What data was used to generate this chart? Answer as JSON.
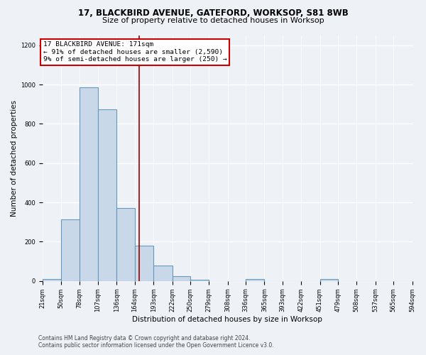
{
  "title1": "17, BLACKBIRD AVENUE, GATEFORD, WORKSOP, S81 8WB",
  "title2": "Size of property relative to detached houses in Worksop",
  "xlabel": "Distribution of detached houses by size in Worksop",
  "ylabel": "Number of detached properties",
  "bin_edges": [
    21,
    50,
    78,
    107,
    136,
    164,
    193,
    222,
    250,
    279,
    308,
    336,
    365,
    393,
    422,
    451,
    479,
    508,
    537,
    565,
    594
  ],
  "bar_heights": [
    10,
    315,
    985,
    875,
    370,
    180,
    80,
    25,
    5,
    0,
    0,
    10,
    0,
    0,
    0,
    10,
    0,
    0,
    0,
    0
  ],
  "bar_color": "#c8d8e8",
  "bar_edge_color": "#6699bb",
  "bar_linewidth": 0.8,
  "vline_x": 171,
  "vline_color": "#990000",
  "vline_linewidth": 1.2,
  "annotation_title": "17 BLACKBIRD AVENUE: 171sqm",
  "annotation_line1": "← 91% of detached houses are smaller (2,590)",
  "annotation_line2": "9% of semi-detached houses are larger (250) →",
  "annotation_box_color": "#ffffff",
  "annotation_box_edge": "#cc0000",
  "bg_color": "#eef2f7",
  "grid_color": "#ffffff",
  "footer1": "Contains HM Land Registry data © Crown copyright and database right 2024.",
  "footer2": "Contains public sector information licensed under the Open Government Licence v3.0.",
  "ylim": [
    0,
    1250
  ],
  "yticks": [
    0,
    200,
    400,
    600,
    800,
    1000,
    1200
  ],
  "title1_fontsize": 8.5,
  "title2_fontsize": 8.0,
  "xlabel_fontsize": 7.5,
  "ylabel_fontsize": 7.5,
  "tick_fontsize": 6.0,
  "annotation_fontsize": 6.8,
  "footer_fontsize": 5.5
}
